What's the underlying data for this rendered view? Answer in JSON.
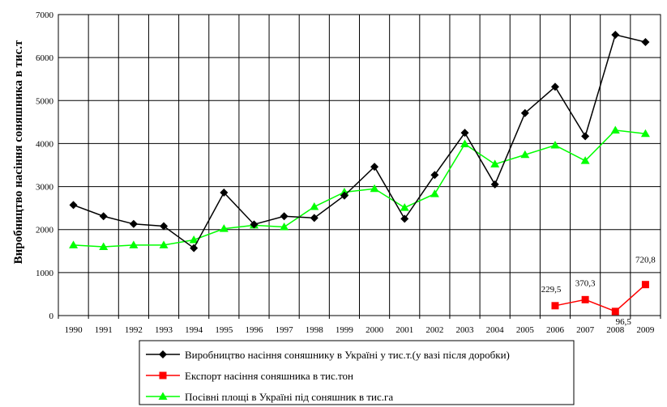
{
  "chart_data": {
    "type": "line",
    "title": "",
    "xlabel": "",
    "ylabel": "Виробництво насіння соняшника в тис.т",
    "ylim": [
      0,
      7000
    ],
    "yticks": [
      0,
      1000,
      2000,
      3000,
      4000,
      5000,
      6000,
      7000
    ],
    "grid": true,
    "legend_position": "bottom",
    "categories": [
      "1990",
      "1991",
      "1992",
      "1993",
      "1994",
      "1995",
      "1996",
      "1997",
      "1998",
      "1999",
      "2000",
      "2001",
      "2002",
      "2003",
      "2004",
      "2005",
      "2006",
      "2007",
      "2008",
      "2009"
    ],
    "series": [
      {
        "name": "Виробництво насіння соняшнику в Україні у тис.т.(у вазі після доробки)",
        "color": "#000000",
        "marker": "diamond",
        "values": [
          2570,
          2310,
          2130,
          2080,
          1570,
          2860,
          2120,
          2310,
          2270,
          2790,
          3460,
          2250,
          3270,
          4250,
          3050,
          4710,
          5320,
          4170,
          6530,
          6360
        ]
      },
      {
        "name": "Експорт насіння соняшника в тис.тон",
        "color": "#ff0000",
        "marker": "square",
        "values": [
          null,
          null,
          null,
          null,
          null,
          null,
          null,
          null,
          null,
          null,
          null,
          null,
          null,
          null,
          null,
          null,
          229.5,
          370.3,
          96.5,
          720.8
        ],
        "labels": [
          null,
          null,
          null,
          null,
          null,
          null,
          null,
          null,
          null,
          null,
          null,
          null,
          null,
          null,
          null,
          null,
          "229,5",
          "370,3",
          "96,5",
          "720,8"
        ]
      },
      {
        "name": "Посівні площі в Україні під соняшник в тис.га",
        "color": "#00ff00",
        "marker": "triangle",
        "values": [
          1640,
          1600,
          1640,
          1640,
          1760,
          2020,
          2100,
          2060,
          2530,
          2870,
          2950,
          2510,
          2830,
          3990,
          3520,
          3740,
          3960,
          3600,
          4310,
          4230
        ]
      }
    ]
  }
}
